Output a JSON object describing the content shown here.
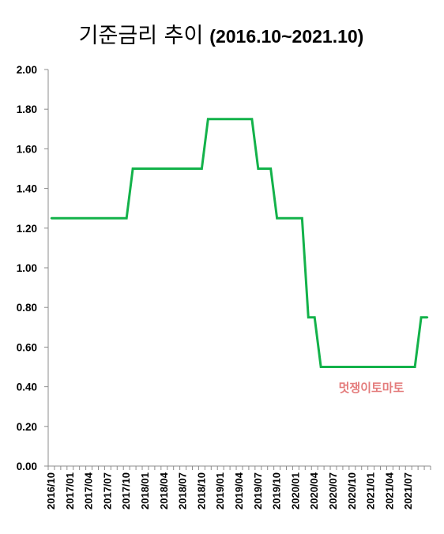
{
  "chart_data": {
    "type": "line",
    "title": "기준금리 추이",
    "subtitle": "(2016.10~2021.10)",
    "xlabel": "",
    "ylabel": "",
    "ylim": [
      0,
      2
    ],
    "yticks": [
      "0.00",
      "0.20",
      "0.40",
      "0.60",
      "0.80",
      "1.00",
      "1.20",
      "1.40",
      "1.60",
      "1.80",
      "2.00"
    ],
    "xticks": [
      "2016/10",
      "2017/01",
      "2017/04",
      "2017/07",
      "2017/10",
      "2018/01",
      "2018/04",
      "2018/07",
      "2018/10",
      "2019/01",
      "2019/04",
      "2019/07",
      "2019/10",
      "2020/01",
      "2020/04",
      "2020/07",
      "2020/10",
      "2021/01",
      "2021/04",
      "2021/07"
    ],
    "grid": false,
    "line_color": "#13b24a",
    "series": [
      {
        "x": [
          "2016/10",
          "2016/11",
          "2016/12",
          "2017/01",
          "2017/02",
          "2017/03",
          "2017/04",
          "2017/05",
          "2017/06",
          "2017/07",
          "2017/08",
          "2017/09",
          "2017/10",
          "2017/11",
          "2017/12",
          "2018/01",
          "2018/02",
          "2018/03",
          "2018/04",
          "2018/05",
          "2018/06",
          "2018/07",
          "2018/08",
          "2018/09",
          "2018/10",
          "2018/11",
          "2018/12",
          "2019/01",
          "2019/02",
          "2019/03",
          "2019/04",
          "2019/05",
          "2019/06",
          "2019/07",
          "2019/08",
          "2019/09",
          "2019/10",
          "2019/11",
          "2019/12",
          "2020/01",
          "2020/02",
          "2020/03",
          "2020/04",
          "2020/05",
          "2020/06",
          "2020/07",
          "2020/08",
          "2020/09",
          "2020/10",
          "2020/11",
          "2020/12",
          "2021/01",
          "2021/02",
          "2021/03",
          "2021/04",
          "2021/05",
          "2021/06",
          "2021/07",
          "2021/08",
          "2021/09",
          "2021/10"
        ],
        "values": [
          1.25,
          1.25,
          1.25,
          1.25,
          1.25,
          1.25,
          1.25,
          1.25,
          1.25,
          1.25,
          1.25,
          1.25,
          1.25,
          1.5,
          1.5,
          1.5,
          1.5,
          1.5,
          1.5,
          1.5,
          1.5,
          1.5,
          1.5,
          1.5,
          1.5,
          1.75,
          1.75,
          1.75,
          1.75,
          1.75,
          1.75,
          1.75,
          1.75,
          1.5,
          1.5,
          1.5,
          1.25,
          1.25,
          1.25,
          1.25,
          1.25,
          0.75,
          0.75,
          0.5,
          0.5,
          0.5,
          0.5,
          0.5,
          0.5,
          0.5,
          0.5,
          0.5,
          0.5,
          0.5,
          0.5,
          0.5,
          0.5,
          0.5,
          0.5,
          0.75,
          0.75
        ]
      }
    ],
    "watermark": "멋쟁이토마토"
  }
}
